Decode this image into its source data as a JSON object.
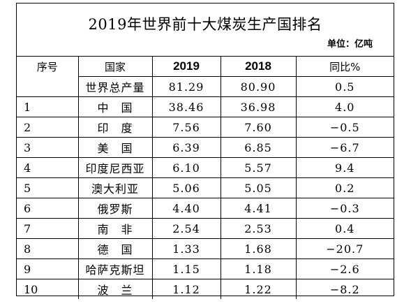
{
  "title": "2019年世界前十大煤炭生产国排名",
  "unit": "单位：亿吨",
  "columns": [
    "序号",
    "国家",
    "2019",
    "2018",
    "同比%"
  ],
  "total_row": {
    "idx": "",
    "name": "世界总产量",
    "v2019": "81.29",
    "v2018": "80.90",
    "yoy": "0.5"
  },
  "rows": [
    {
      "idx": "1",
      "name": "中　国",
      "v2019": "38.46",
      "v2018": "36.98",
      "yoy": "4.0"
    },
    {
      "idx": "2",
      "name": "印　度",
      "v2019": "7.56",
      "v2018": "7.60",
      "yoy": "−0.5"
    },
    {
      "idx": "3",
      "name": "美　国",
      "v2019": "6.39",
      "v2018": "6.85",
      "yoy": "−6.7"
    },
    {
      "idx": "4",
      "name": "印度尼西亚",
      "v2019": "6.10",
      "v2018": "5.57",
      "yoy": "9.4"
    },
    {
      "idx": "5",
      "name": "澳大利亚",
      "v2019": "5.06",
      "v2018": "5.05",
      "yoy": "0.2"
    },
    {
      "idx": "6",
      "name": "俄罗斯",
      "v2019": "4.40",
      "v2018": "4.41",
      "yoy": "−0.3"
    },
    {
      "idx": "7",
      "name": "南　非",
      "v2019": "2.54",
      "v2018": "2.53",
      "yoy": "0.4"
    },
    {
      "idx": "8",
      "name": "德　国",
      "v2019": "1.33",
      "v2018": "1.68",
      "yoy": "−20.7"
    },
    {
      "idx": "9",
      "name": "哈萨克斯坦",
      "v2019": "1.15",
      "v2018": "1.18",
      "yoy": "−2.6"
    },
    {
      "idx": "10",
      "name": "波　兰",
      "v2019": "1.12",
      "v2018": "1.22",
      "yoy": "−8.2"
    }
  ]
}
